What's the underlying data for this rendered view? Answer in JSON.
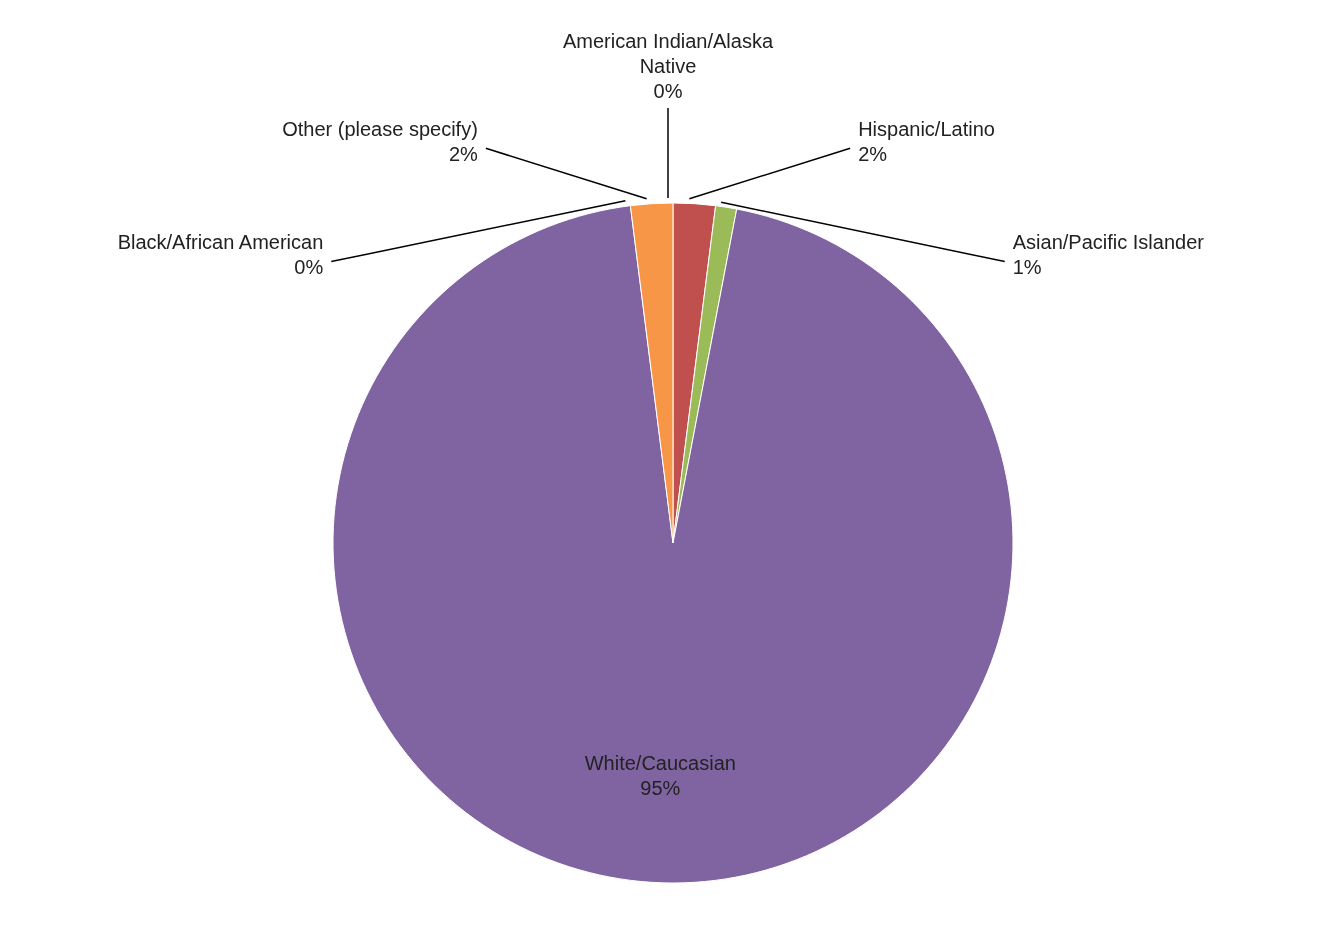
{
  "chart_data": {
    "type": "pie",
    "categories": [
      "American Indian/Alaska Native",
      "Hispanic/Latino",
      "Asian/Pacific Islander",
      "White/Caucasian",
      "Black/African American",
      "Other (please specify)"
    ],
    "values": [
      0,
      2,
      1,
      95,
      0,
      2
    ],
    "colors": [
      "#4f81bd",
      "#c0504d",
      "#9bbb59",
      "#8064a2",
      "#4bacc6",
      "#f79646"
    ],
    "value_labels": [
      "0%",
      "2%",
      "1%",
      "95%",
      "0%",
      "2%"
    ],
    "legend": false
  }
}
